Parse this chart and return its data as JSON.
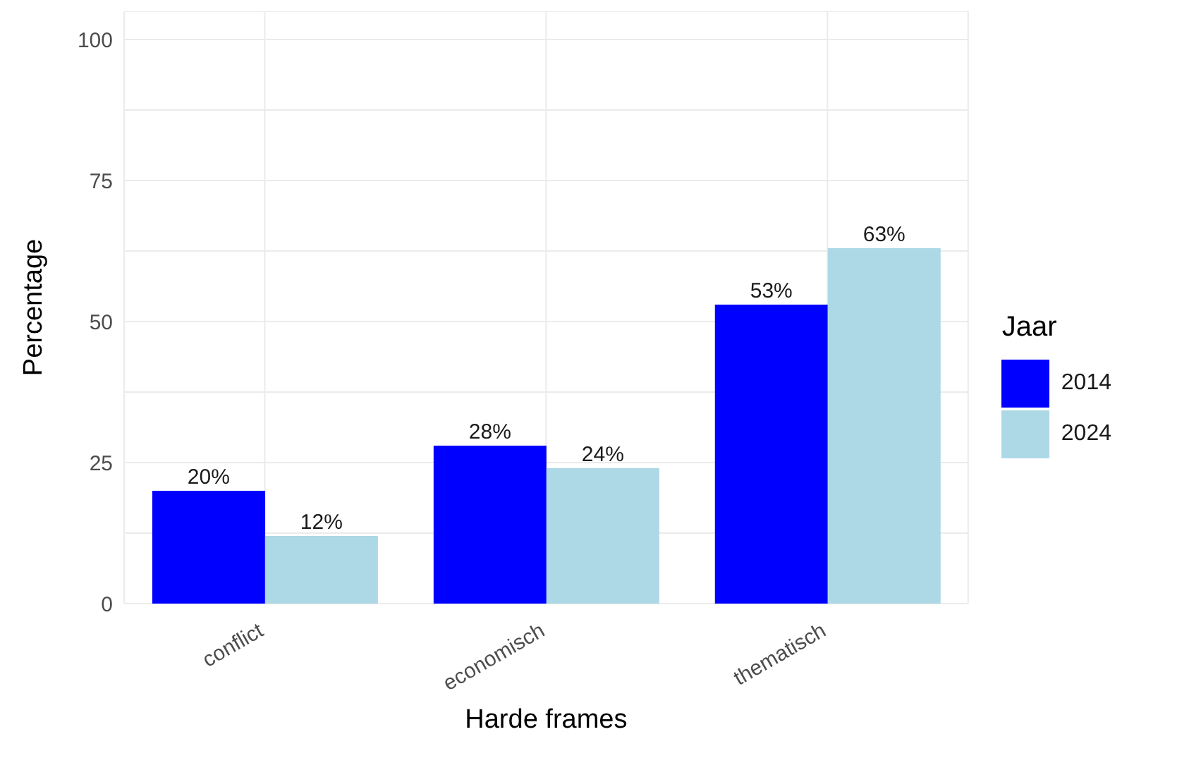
{
  "chart_data": {
    "type": "bar",
    "xlabel": "Harde frames",
    "ylabel": "Percentage",
    "legend_title": "Jaar",
    "categories": [
      "conflict",
      "economisch",
      "thematisch"
    ],
    "series": [
      {
        "name": "2014",
        "color": "#0000ff",
        "values": [
          20,
          28,
          53
        ],
        "value_labels": [
          "20%",
          "28%",
          "53%"
        ]
      },
      {
        "name": "2024",
        "color": "#add8e6",
        "values": [
          12,
          24,
          63
        ],
        "value_labels": [
          "12%",
          "24%",
          "63%"
        ]
      }
    ],
    "ylim": [
      0,
      105
    ],
    "yticks": [
      0,
      {
        "value": 12.5,
        "label": null
      },
      25,
      {
        "value": 37.5,
        "label": null
      },
      50,
      {
        "value": 62.5,
        "label": null
      },
      75,
      {
        "value": 87.5,
        "label": null
      },
      100
    ],
    "grid": true,
    "legend": "right"
  }
}
